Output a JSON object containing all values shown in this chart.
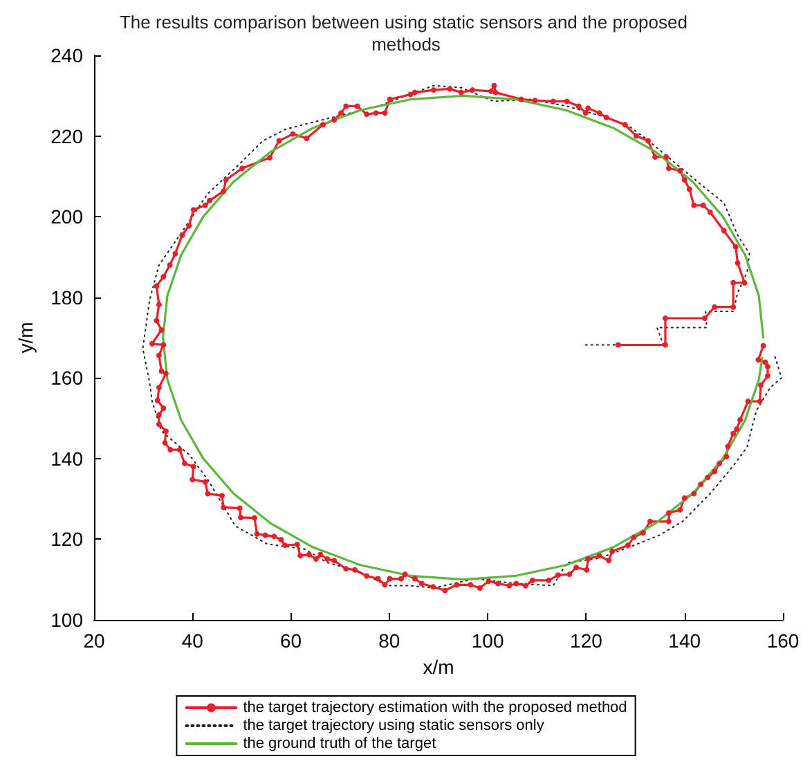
{
  "chart_data": {
    "type": "line",
    "title": "The results comparison between using static sensors and the proposed methods",
    "xlabel": "x/m",
    "ylabel": "y/m",
    "xlim": [
      20,
      160
    ],
    "xticks": [
      20,
      40,
      60,
      80,
      100,
      120,
      140,
      160
    ],
    "ylim": [
      100,
      240
    ],
    "yticks": [
      100,
      120,
      140,
      160,
      180,
      200,
      220,
      240
    ],
    "grid": false,
    "legend": "bottom",
    "series": [
      {
        "name": "the target trajectory estimation with the proposed method",
        "color": "#e8202a",
        "marker": "circle",
        "line_style": "solid",
        "x": [
          126.5,
          136.1,
          136.1,
          144.1,
          146.1,
          149.9,
          149.9,
          152.2,
          150.8,
          150.4,
          148,
          145.2,
          143.8,
          141.9,
          141,
          140,
          139.1,
          136.8,
          136.3,
          134,
          132.6,
          130.2,
          127.9,
          124.1,
          122.7,
          120.4,
          119.9,
          118.5,
          116.1,
          113.3,
          109.6,
          106.8,
          101.6,
          101.3,
          100.7,
          96.9,
          94.6,
          92.3,
          89,
          85.2,
          84.3,
          80.1,
          79.1,
          77.3,
          75.4,
          73.5,
          71.2,
          70.2,
          68.8,
          66.5,
          63.2,
          60.4,
          57.6,
          55.7,
          50.1,
          46.8,
          46.3,
          43.5,
          42.6,
          40.2,
          39.3,
          37.9,
          36.5,
          35.4,
          34.1,
          32.7,
          33.2,
          32.7,
          33.7,
          31.8,
          34.1,
          33.2,
          33.7,
          34.6,
          33.2,
          32.9,
          34.1,
          33.2,
          33.2,
          34.6,
          34.4,
          35.5,
          37.4,
          38.4,
          40.2,
          40,
          42.6,
          43.1,
          46,
          46.3,
          49.6,
          49.8,
          52.6,
          53.1,
          54.8,
          56.6,
          58,
          58.8,
          61.3,
          61.9,
          63.7,
          65.1,
          66,
          67.4,
          68.8,
          71.2,
          73,
          75.4,
          77.7,
          79.1,
          80.1,
          82.4,
          83.2,
          85.2,
          86.6,
          88.9,
          91.3,
          93.7,
          96.5,
          98.4,
          100.2,
          102.1,
          104.4,
          105.8,
          107.7,
          109.1,
          112.4,
          114.3,
          116.6,
          118,
          120.1,
          120.4,
          122.7,
          124.6,
          125.3,
          128.5,
          129.7,
          131.6,
          133,
          136.8,
          136.8,
          139.1,
          140,
          141.9,
          143.3,
          144.7,
          146.1,
          147.1,
          148.5,
          148.8,
          149.9,
          150.6,
          151.3,
          152.9,
          155.3,
          155.5,
          156.9,
          156.9,
          156.4,
          155,
          156
        ],
        "values": [
          168.2,
          168.2,
          174.8,
          174.8,
          177.6,
          177.6,
          183.6,
          183.6,
          188.5,
          192.5,
          196.5,
          201.1,
          202.8,
          202.8,
          206.8,
          209.1,
          211.4,
          212,
          214.8,
          214.8,
          218.8,
          220,
          222.8,
          224.6,
          225.7,
          226.9,
          225.7,
          227.4,
          228.6,
          228.6,
          228.8,
          229.1,
          230.8,
          232.5,
          231.1,
          231.4,
          230.8,
          231.7,
          231.4,
          230.8,
          230.3,
          229.1,
          225.7,
          225.7,
          225.4,
          227.4,
          227.4,
          225.7,
          224,
          222.8,
          219.4,
          220.5,
          218.8,
          214.6,
          212,
          209.1,
          206.3,
          204,
          202.8,
          201.7,
          197.7,
          195.4,
          190.8,
          188,
          185.1,
          182.8,
          178.2,
          174.2,
          171.9,
          168.5,
          168.2,
          165.6,
          161.7,
          161.1,
          157.6,
          154.4,
          152.5,
          150.8,
          148.5,
          146.8,
          143.9,
          142.2,
          142.2,
          138.8,
          138,
          134.8,
          134.2,
          131.3,
          130.8,
          127.9,
          127.7,
          125.4,
          125.3,
          121.3,
          121,
          120.7,
          119.9,
          118.5,
          118.7,
          115.9,
          116.2,
          115.1,
          116.2,
          115.1,
          114.7,
          112.7,
          112.4,
          110.9,
          110.2,
          108.7,
          110.2,
          110.2,
          111.3,
          110.2,
          109,
          108.2,
          107.3,
          108.7,
          108.7,
          107.9,
          109.6,
          109,
          108.5,
          109,
          108.5,
          109.8,
          109.8,
          111.1,
          111.3,
          113,
          112.4,
          115.1,
          115.9,
          114.7,
          117,
          118.5,
          120.5,
          121.6,
          124.4,
          124.4,
          126.5,
          127.3,
          130.2,
          131.3,
          133.6,
          135.3,
          136.8,
          138.8,
          140.5,
          143,
          146.2,
          147.3,
          149.6,
          154.2,
          154.2,
          158.2,
          160.5,
          162.8,
          163.9,
          164.5,
          168
        ]
      },
      {
        "name": "the target trajectory using static sensors only",
        "color": "#222222",
        "marker": "none",
        "line_style": "dotted",
        "x": [
          119.9,
          135.7,
          134.4,
          144.5,
          144.3,
          149.9,
          150.8,
          152.7,
          153.2,
          150.8,
          148,
          143.3,
          137.7,
          132.1,
          128.3,
          122.7,
          116.1,
          108.6,
          101.2,
          94.6,
          89,
          77.7,
          68.4,
          59,
          54.3,
          49.6,
          43.1,
          37.4,
          33.2,
          31.3,
          29.9,
          31.3,
          31.8,
          33.7,
          39.3,
          43.1,
          48.7,
          55.2,
          62.7,
          67.4,
          74,
          79.6,
          84.3,
          89,
          97.4,
          105.8,
          113.3,
          116.1,
          122.7,
          130.2,
          134.9,
          139.6,
          145.2,
          149.9,
          152.7,
          154.6,
          157.4,
          159.7,
          158.3
        ],
        "values": [
          168.2,
          168.2,
          172.5,
          172.5,
          176.5,
          176.5,
          181.1,
          186.2,
          190.8,
          195.4,
          203.4,
          208,
          213.7,
          219.4,
          222.8,
          225.1,
          227.4,
          229.1,
          228.6,
          232,
          232.5,
          227.4,
          224.6,
          221.7,
          218.8,
          213.1,
          205.7,
          195.4,
          188,
          179.4,
          167.3,
          158.8,
          154.2,
          146.8,
          141,
          134.8,
          123.3,
          118.8,
          117.6,
          114.2,
          111.9,
          108.5,
          108.5,
          107.9,
          110.2,
          109,
          108.5,
          114.2,
          115.3,
          118.7,
          121,
          124.4,
          131.3,
          138.2,
          142.8,
          151.9,
          157.6,
          160,
          165.6
        ]
      },
      {
        "name": "the ground truth of the target",
        "color": "#5cb83c",
        "marker": "none",
        "line_style": "solid",
        "x": [
          156,
          155.1,
          152.3,
          147.8,
          141.7,
          134.2,
          125.5,
          115.9,
          105.6,
          95,
          84.4,
          74.1,
          64.5,
          55.8,
          48.3,
          42.2,
          37.7,
          34.9,
          34,
          34.9,
          37.7,
          42.2,
          48.3,
          55.8,
          64.5,
          74.1,
          84.4,
          95,
          105.6,
          115.9,
          125.5,
          134.2,
          141.7,
          147.8,
          152.3,
          155.1,
          155.8
        ],
        "values": [
          170,
          180.4,
          190.5,
          200,
          208.6,
          216,
          222,
          226.4,
          229.1,
          230,
          229.1,
          226.4,
          222,
          216,
          208.6,
          200,
          190.5,
          180.4,
          170,
          159.6,
          149.5,
          140,
          131.4,
          124,
          118,
          113.6,
          110.9,
          110,
          110.9,
          113.6,
          118,
          124,
          131.4,
          140,
          149.5,
          159.6,
          165
        ]
      }
    ]
  }
}
